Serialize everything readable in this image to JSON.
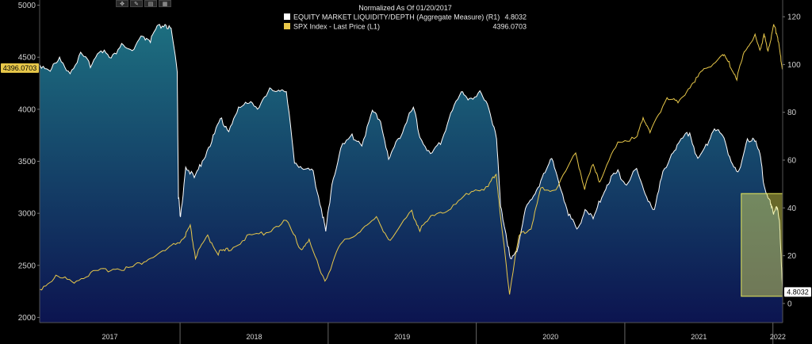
{
  "toolbar": {
    "icons": [
      "move-icon",
      "draw-icon",
      "chart-type-icon",
      "table-icon"
    ],
    "glyphs": [
      "✥",
      "✎",
      "▤",
      "▦"
    ]
  },
  "legend": {
    "header": "Normalized As Of 01/20/2017",
    "entries": [
      {
        "label": "EQUITY MARKET LIQUIDITY/DEPTH (Aggregate Measure) (R1)",
        "value": "4.8032",
        "swatch": "#ffffff"
      },
      {
        "label": "SPX Index - Last Price (L1)",
        "value": "4396.0703",
        "swatch": "#e8c84a"
      }
    ]
  },
  "last_value_tags": {
    "left": "4396.0703",
    "right": "4.8032"
  },
  "colors": {
    "background": "#000000",
    "spx_line": "#e8c84a",
    "liquidity_line": "#ffffff",
    "liquidity_fill_top": "#1d6f80",
    "liquidity_fill_bottom": "#0c1450",
    "highlight_box": "#e8e85a"
  },
  "chart_data": {
    "type": "line",
    "title": "",
    "x_range": [
      "2017-01-20",
      "2022-01-25"
    ],
    "x_year_labels": [
      "2017",
      "2018",
      "2019",
      "2020",
      "2021",
      "2022"
    ],
    "left_axis": {
      "label": "",
      "range": [
        1950,
        5050
      ],
      "ticks": [
        2000,
        2500,
        3000,
        3500,
        4000,
        4500,
        5000
      ]
    },
    "right_axis": {
      "label": "",
      "range": [
        -8,
        127
      ],
      "ticks": [
        0,
        20,
        40,
        60,
        80,
        100,
        120
      ]
    },
    "grid": false,
    "legend_position": "top-center",
    "highlight_region": {
      "x": [
        "2021-10-15",
        "2022-01-25"
      ],
      "y_right": [
        3,
        46
      ]
    },
    "series": [
      {
        "name": "EQUITY MARKET LIQUIDITY/DEPTH (Aggregate Measure) (R1)",
        "axis": "right",
        "style": "area",
        "points": [
          [
            "2017-01-20",
            100
          ],
          [
            "2017-02-15",
            98
          ],
          [
            "2017-03-10",
            102
          ],
          [
            "2017-04-05",
            97
          ],
          [
            "2017-05-01",
            104
          ],
          [
            "2017-05-25",
            100
          ],
          [
            "2017-06-20",
            107
          ],
          [
            "2017-07-15",
            102
          ],
          [
            "2017-08-10",
            109
          ],
          [
            "2017-09-05",
            105
          ],
          [
            "2017-10-01",
            112
          ],
          [
            "2017-10-20",
            110
          ],
          [
            "2017-11-05",
            115
          ],
          [
            "2017-11-25",
            117
          ],
          [
            "2017-12-10",
            114
          ],
          [
            "2017-12-25",
            98
          ],
          [
            "2017-12-28",
            45
          ],
          [
            "2018-01-02",
            35
          ],
          [
            "2018-01-15",
            58
          ],
          [
            "2018-02-05",
            52
          ],
          [
            "2018-02-25",
            60
          ],
          [
            "2018-03-20",
            68
          ],
          [
            "2018-04-10",
            77
          ],
          [
            "2018-05-01",
            73
          ],
          [
            "2018-05-25",
            81
          ],
          [
            "2018-06-20",
            85
          ],
          [
            "2018-07-15",
            82
          ],
          [
            "2018-08-10",
            89
          ],
          [
            "2018-09-01",
            90
          ],
          [
            "2018-09-20",
            88
          ],
          [
            "2018-10-10",
            60
          ],
          [
            "2018-11-01",
            56
          ],
          [
            "2018-11-25",
            55
          ],
          [
            "2018-12-15",
            40
          ],
          [
            "2018-12-26",
            30
          ],
          [
            "2019-01-10",
            50
          ],
          [
            "2019-02-01",
            65
          ],
          [
            "2019-03-01",
            70
          ],
          [
            "2019-03-25",
            67
          ],
          [
            "2019-04-20",
            80
          ],
          [
            "2019-05-10",
            77
          ],
          [
            "2019-05-30",
            60
          ],
          [
            "2019-06-20",
            68
          ],
          [
            "2019-07-10",
            75
          ],
          [
            "2019-07-30",
            82
          ],
          [
            "2019-08-15",
            70
          ],
          [
            "2019-09-10",
            62
          ],
          [
            "2019-10-05",
            67
          ],
          [
            "2019-10-30",
            80
          ],
          [
            "2019-11-25",
            88
          ],
          [
            "2019-12-15",
            86
          ],
          [
            "2020-01-10",
            88
          ],
          [
            "2020-02-01",
            82
          ],
          [
            "2020-02-20",
            70
          ],
          [
            "2020-03-01",
            40
          ],
          [
            "2020-03-12",
            32
          ],
          [
            "2020-03-25",
            18
          ],
          [
            "2020-04-10",
            22
          ],
          [
            "2020-05-01",
            40
          ],
          [
            "2020-05-25",
            45
          ],
          [
            "2020-06-15",
            55
          ],
          [
            "2020-07-05",
            60
          ],
          [
            "2020-07-25",
            50
          ],
          [
            "2020-08-15",
            38
          ],
          [
            "2020-09-05",
            30
          ],
          [
            "2020-09-25",
            40
          ],
          [
            "2020-10-15",
            35
          ],
          [
            "2020-11-05",
            45
          ],
          [
            "2020-11-25",
            52
          ],
          [
            "2020-12-15",
            55
          ],
          [
            "2021-01-05",
            50
          ],
          [
            "2021-01-30",
            56
          ],
          [
            "2021-02-20",
            46
          ],
          [
            "2021-03-15",
            39
          ],
          [
            "2021-04-05",
            55
          ],
          [
            "2021-04-30",
            64
          ],
          [
            "2021-05-20",
            68
          ],
          [
            "2021-06-10",
            72
          ],
          [
            "2021-06-30",
            60
          ],
          [
            "2021-07-20",
            66
          ],
          [
            "2021-08-10",
            74
          ],
          [
            "2021-08-30",
            70
          ],
          [
            "2021-09-20",
            60
          ],
          [
            "2021-10-10",
            55
          ],
          [
            "2021-10-30",
            68
          ],
          [
            "2021-11-15",
            70
          ],
          [
            "2021-11-30",
            62
          ],
          [
            "2021-12-10",
            50
          ],
          [
            "2021-12-25",
            42
          ],
          [
            "2022-01-01",
            38
          ],
          [
            "2022-01-10",
            41
          ],
          [
            "2022-01-17",
            34
          ],
          [
            "2022-01-20",
            25
          ],
          [
            "2022-01-23",
            12
          ],
          [
            "2022-01-25",
            4.8
          ]
        ]
      },
      {
        "name": "SPX Index - Last Price (L1)",
        "axis": "left",
        "style": "line",
        "points": [
          [
            "2017-01-20",
            2270
          ],
          [
            "2017-03-01",
            2390
          ],
          [
            "2017-04-15",
            2350
          ],
          [
            "2017-06-01",
            2430
          ],
          [
            "2017-07-20",
            2470
          ],
          [
            "2017-09-01",
            2475
          ],
          [
            "2017-10-15",
            2560
          ],
          [
            "2017-12-01",
            2650
          ],
          [
            "2018-01-10",
            2760
          ],
          [
            "2018-01-26",
            2870
          ],
          [
            "2018-02-08",
            2580
          ],
          [
            "2018-03-10",
            2780
          ],
          [
            "2018-04-05",
            2620
          ],
          [
            "2018-05-01",
            2650
          ],
          [
            "2018-06-15",
            2770
          ],
          [
            "2018-08-01",
            2820
          ],
          [
            "2018-09-20",
            2930
          ],
          [
            "2018-10-25",
            2660
          ],
          [
            "2018-11-15",
            2730
          ],
          [
            "2018-12-24",
            2350
          ],
          [
            "2019-01-31",
            2700
          ],
          [
            "2019-03-15",
            2820
          ],
          [
            "2019-04-30",
            2950
          ],
          [
            "2019-06-03",
            2740
          ],
          [
            "2019-07-26",
            3020
          ],
          [
            "2019-08-15",
            2840
          ],
          [
            "2019-09-20",
            3000
          ],
          [
            "2019-10-30",
            3040
          ],
          [
            "2019-12-20",
            3220
          ],
          [
            "2020-01-30",
            3250
          ],
          [
            "2020-02-19",
            3390
          ],
          [
            "2020-03-01",
            2950
          ],
          [
            "2020-03-23",
            2240
          ],
          [
            "2020-04-15",
            2780
          ],
          [
            "2020-05-15",
            2860
          ],
          [
            "2020-06-08",
            3230
          ],
          [
            "2020-07-15",
            3230
          ],
          [
            "2020-09-02",
            3580
          ],
          [
            "2020-09-24",
            3240
          ],
          [
            "2020-10-15",
            3480
          ],
          [
            "2020-11-01",
            3300
          ],
          [
            "2020-12-15",
            3700
          ],
          [
            "2021-01-30",
            3720
          ],
          [
            "2021-02-15",
            3930
          ],
          [
            "2021-03-04",
            3770
          ],
          [
            "2021-04-15",
            4120
          ],
          [
            "2021-05-12",
            4060
          ],
          [
            "2021-06-15",
            4250
          ],
          [
            "2021-07-15",
            4370
          ],
          [
            "2021-08-30",
            4530
          ],
          [
            "2021-09-15",
            4440
          ],
          [
            "2021-10-04",
            4300
          ],
          [
            "2021-10-25",
            4580
          ],
          [
            "2021-11-18",
            4700
          ],
          [
            "2021-11-30",
            4570
          ],
          [
            "2021-12-10",
            4710
          ],
          [
            "2021-12-20",
            4570
          ],
          [
            "2022-01-03",
            4800
          ],
          [
            "2022-01-12",
            4720
          ],
          [
            "2022-01-19",
            4530
          ],
          [
            "2022-01-24",
            4400
          ],
          [
            "2022-01-25",
            4396.0703
          ]
        ]
      }
    ]
  }
}
